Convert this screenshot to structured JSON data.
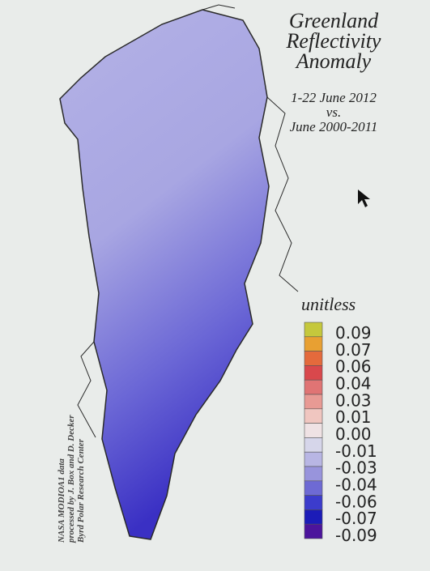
{
  "title": [
    "Greenland",
    "Reflectivity",
    "Anomaly"
  ],
  "subtitle": [
    "1-22 June 2012",
    "vs.",
    "June 2000-2011"
  ],
  "legend": {
    "title": "unitless",
    "colors": [
      "#c5c83c",
      "#e8a032",
      "#e46a3c",
      "#d9484c",
      "#e07474",
      "#e89a94",
      "#f0c6c0",
      "#efe2e4",
      "#d6d6ea",
      "#b8b6e4",
      "#9894dc",
      "#6e6ad4",
      "#3c3ccc",
      "#1c1cb8",
      "#4c149c"
    ],
    "labels": [
      "0.09",
      "0.07",
      "0.06",
      "0.04",
      "0.03",
      "0.01",
      "0.00",
      "-0.01",
      "-0.03",
      "-0.04",
      "-0.06",
      "-0.07",
      "-0.09"
    ]
  },
  "credit": [
    "NASA MODIOA1 data",
    "processed by J. Box and D. Decker",
    "Byrd Polar Research Center"
  ]
}
